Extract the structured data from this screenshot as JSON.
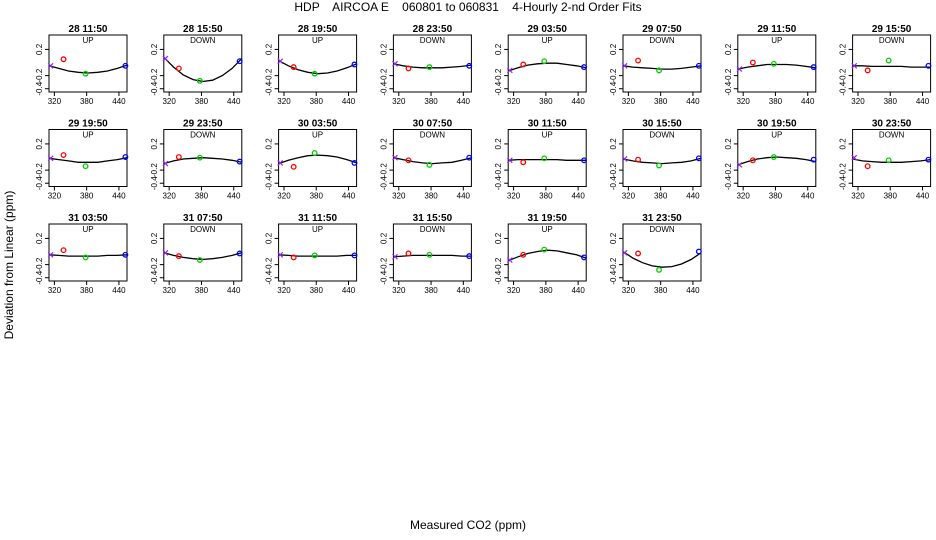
{
  "figure": {
    "title": "HDP    AIRCOA E    060801 to 060831    4-Hourly 2-nd Order Fits",
    "xlabel": "Measured CO2 (ppm)",
    "ylabel": "Deviation from Linear (ppm)"
  },
  "colors": {
    "curve": "#000000",
    "point_1": "#8a2be2",
    "point_2": "#ff0000",
    "point_3": "#00cc00",
    "point_4": "#0000ff",
    "axis": "#000000"
  },
  "chart_data": [
    {
      "type": "scatter",
      "title": "28 11:50",
      "subtitle": "UP",
      "x": [
        313,
        337,
        378,
        452
      ],
      "y": [
        -0.05,
        0.05,
        -0.17,
        -0.05
      ],
      "fit": [
        -0.05,
        -0.09,
        -0.13,
        -0.15,
        -0.16,
        -0.15,
        -0.13,
        -0.09,
        -0.04
      ],
      "xlim": [
        310,
        455
      ],
      "ylim": [
        -0.45,
        0.42
      ],
      "xticks": [
        320,
        380,
        440
      ],
      "yticks": [
        -0.4,
        -0.2,
        0.2
      ]
    },
    {
      "type": "scatter",
      "title": "28 15:50",
      "subtitle": "DOWN",
      "x": [
        313,
        338,
        377,
        451
      ],
      "y": [
        0.06,
        -0.09,
        -0.28,
        0.02
      ],
      "fit": [
        0.08,
        -0.07,
        -0.19,
        -0.26,
        -0.29,
        -0.27,
        -0.2,
        -0.09,
        0.06
      ],
      "xlim": [
        310,
        455
      ],
      "ylim": [
        -0.45,
        0.42
      ],
      "xticks": [
        320,
        380,
        440
      ],
      "yticks": [
        -0.4,
        -0.2,
        0.2
      ]
    },
    {
      "type": "scatter",
      "title": "28 19:50",
      "subtitle": "UP",
      "x": [
        313,
        338,
        377,
        451
      ],
      "y": [
        0.02,
        -0.07,
        -0.17,
        -0.03
      ],
      "fit": [
        0.03,
        -0.05,
        -0.11,
        -0.15,
        -0.17,
        -0.16,
        -0.13,
        -0.08,
        -0.02
      ],
      "xlim": [
        310,
        455
      ],
      "ylim": [
        -0.45,
        0.42
      ],
      "xticks": [
        320,
        380,
        440
      ],
      "yticks": [
        -0.4,
        -0.2,
        0.2
      ]
    },
    {
      "type": "scatter",
      "title": "28 23:50",
      "subtitle": "DOWN",
      "x": [
        313,
        338,
        377,
        451
      ],
      "y": [
        -0.02,
        -0.09,
        -0.07,
        -0.05
      ],
      "fit": [
        -0.02,
        -0.05,
        -0.07,
        -0.08,
        -0.08,
        -0.08,
        -0.07,
        -0.06,
        -0.04
      ],
      "xlim": [
        310,
        455
      ],
      "ylim": [
        -0.45,
        0.42
      ],
      "xticks": [
        320,
        380,
        440
      ],
      "yticks": [
        -0.4,
        -0.2,
        0.2
      ]
    },
    {
      "type": "scatter",
      "title": "29 03:50",
      "subtitle": "UP",
      "x": [
        313,
        338,
        377,
        451
      ],
      "y": [
        -0.12,
        -0.03,
        0.02,
        -0.07
      ],
      "fit": [
        -0.13,
        -0.08,
        -0.04,
        -0.02,
        -0.01,
        -0.01,
        -0.03,
        -0.05,
        -0.08
      ],
      "xlim": [
        310,
        455
      ],
      "ylim": [
        -0.45,
        0.42
      ],
      "xticks": [
        320,
        380,
        440
      ],
      "yticks": [
        -0.4,
        -0.2,
        0.2
      ]
    },
    {
      "type": "scatter",
      "title": "29 07:50",
      "subtitle": "DOWN",
      "x": [
        313,
        338,
        377,
        451
      ],
      "y": [
        -0.05,
        0.03,
        -0.12,
        -0.05
      ],
      "fit": [
        -0.05,
        -0.07,
        -0.08,
        -0.09,
        -0.1,
        -0.1,
        -0.09,
        -0.07,
        -0.05
      ],
      "xlim": [
        310,
        455
      ],
      "ylim": [
        -0.45,
        0.42
      ],
      "xticks": [
        320,
        380,
        440
      ],
      "yticks": [
        -0.4,
        -0.2,
        0.2
      ]
    },
    {
      "type": "scatter",
      "title": "29 11:50",
      "subtitle": "UP",
      "x": [
        313,
        338,
        377,
        451
      ],
      "y": [
        -0.1,
        0.0,
        -0.02,
        -0.07
      ],
      "fit": [
        -0.1,
        -0.07,
        -0.05,
        -0.03,
        -0.03,
        -0.03,
        -0.04,
        -0.06,
        -0.08
      ],
      "xlim": [
        310,
        455
      ],
      "ylim": [
        -0.45,
        0.42
      ],
      "xticks": [
        320,
        380,
        440
      ],
      "yticks": [
        -0.4,
        -0.2,
        0.2
      ]
    },
    {
      "type": "scatter",
      "title": "29 15:50",
      "subtitle": "DOWN",
      "x": [
        313,
        338,
        377,
        451
      ],
      "y": [
        -0.05,
        -0.12,
        0.03,
        -0.05
      ],
      "fit": [
        -0.05,
        -0.05,
        -0.06,
        -0.06,
        -0.06,
        -0.06,
        -0.07,
        -0.07,
        -0.07
      ],
      "xlim": [
        310,
        455
      ],
      "ylim": [
        -0.45,
        0.42
      ],
      "xticks": [
        320,
        380,
        440
      ],
      "yticks": [
        -0.4,
        -0.2,
        0.2
      ]
    },
    {
      "type": "scatter",
      "title": "29 19:50",
      "subtitle": "UP",
      "x": [
        313,
        337,
        378,
        452
      ],
      "y": [
        -0.02,
        0.03,
        -0.14,
        0.0
      ],
      "fit": [
        -0.02,
        -0.04,
        -0.06,
        -0.08,
        -0.08,
        -0.08,
        -0.06,
        -0.04,
        -0.01
      ],
      "xlim": [
        310,
        455
      ],
      "ylim": [
        -0.45,
        0.42
      ],
      "xticks": [
        320,
        380,
        440
      ],
      "yticks": [
        -0.4,
        -0.2,
        0.2
      ]
    },
    {
      "type": "scatter",
      "title": "29 23:50",
      "subtitle": "DOWN",
      "x": [
        313,
        338,
        377,
        451
      ],
      "y": [
        -0.1,
        0.0,
        -0.01,
        -0.07
      ],
      "fit": [
        -0.1,
        -0.06,
        -0.03,
        -0.02,
        -0.01,
        -0.02,
        -0.03,
        -0.05,
        -0.08
      ],
      "xlim": [
        310,
        455
      ],
      "ylim": [
        -0.45,
        0.42
      ],
      "xticks": [
        320,
        380,
        440
      ],
      "yticks": [
        -0.4,
        -0.2,
        0.2
      ]
    },
    {
      "type": "scatter",
      "title": "30 03:50",
      "subtitle": "UP",
      "x": [
        313,
        338,
        377,
        451
      ],
      "y": [
        -0.09,
        -0.15,
        0.06,
        -0.09
      ],
      "fit": [
        -0.1,
        -0.05,
        -0.01,
        0.02,
        0.03,
        0.02,
        0.0,
        -0.04,
        -0.09
      ],
      "xlim": [
        310,
        455
      ],
      "ylim": [
        -0.45,
        0.42
      ],
      "xticks": [
        320,
        380,
        440
      ],
      "yticks": [
        -0.4,
        -0.2,
        0.2
      ]
    },
    {
      "type": "scatter",
      "title": "30 07:50",
      "subtitle": "DOWN",
      "x": [
        313,
        338,
        377,
        451
      ],
      "y": [
        -0.01,
        -0.05,
        -0.12,
        -0.01
      ],
      "fit": [
        -0.01,
        -0.04,
        -0.07,
        -0.09,
        -0.1,
        -0.09,
        -0.08,
        -0.05,
        -0.01
      ],
      "xlim": [
        310,
        455
      ],
      "ylim": [
        -0.45,
        0.42
      ],
      "xticks": [
        320,
        380,
        440
      ],
      "yticks": [
        -0.4,
        -0.2,
        0.2
      ]
    },
    {
      "type": "scatter",
      "title": "30 11:50",
      "subtitle": "UP",
      "x": [
        313,
        338,
        377,
        451
      ],
      "y": [
        -0.05,
        -0.08,
        -0.02,
        -0.05
      ],
      "fit": [
        -0.05,
        -0.04,
        -0.04,
        -0.04,
        -0.04,
        -0.04,
        -0.05,
        -0.05,
        -0.05
      ],
      "xlim": [
        310,
        455
      ],
      "ylim": [
        -0.45,
        0.42
      ],
      "xticks": [
        320,
        380,
        440
      ],
      "yticks": [
        -0.4,
        -0.2,
        0.2
      ]
    },
    {
      "type": "scatter",
      "title": "30 15:50",
      "subtitle": "DOWN",
      "x": [
        313,
        338,
        377,
        451
      ],
      "y": [
        -0.03,
        -0.04,
        -0.13,
        -0.02
      ],
      "fit": [
        -0.03,
        -0.06,
        -0.08,
        -0.09,
        -0.1,
        -0.09,
        -0.08,
        -0.06,
        -0.02
      ],
      "xlim": [
        310,
        455
      ],
      "ylim": [
        -0.45,
        0.42
      ],
      "xticks": [
        320,
        380,
        440
      ],
      "yticks": [
        -0.4,
        -0.2,
        0.2
      ]
    },
    {
      "type": "scatter",
      "title": "30 19:50",
      "subtitle": "UP",
      "x": [
        313,
        338,
        377,
        451
      ],
      "y": [
        -0.12,
        -0.05,
        0.0,
        -0.04
      ],
      "fit": [
        -0.12,
        -0.07,
        -0.03,
        -0.01,
        0.0,
        -0.01,
        -0.02,
        -0.04,
        -0.07
      ],
      "xlim": [
        310,
        455
      ],
      "ylim": [
        -0.45,
        0.42
      ],
      "xticks": [
        320,
        380,
        440
      ],
      "yticks": [
        -0.4,
        -0.2,
        0.2
      ]
    },
    {
      "type": "scatter",
      "title": "30 23:50",
      "subtitle": "DOWN",
      "x": [
        313,
        338,
        377,
        451
      ],
      "y": [
        -0.01,
        -0.14,
        -0.05,
        -0.04
      ],
      "fit": [
        -0.03,
        -0.06,
        -0.07,
        -0.08,
        -0.08,
        -0.08,
        -0.07,
        -0.06,
        -0.04
      ],
      "xlim": [
        310,
        455
      ],
      "ylim": [
        -0.45,
        0.42
      ],
      "xticks": [
        320,
        380,
        440
      ],
      "yticks": [
        -0.4,
        -0.2,
        0.2
      ]
    },
    {
      "type": "scatter",
      "title": "31 03:50",
      "subtitle": "UP",
      "x": [
        313,
        337,
        378,
        452
      ],
      "y": [
        -0.05,
        0.02,
        -0.09,
        -0.05
      ],
      "fit": [
        -0.05,
        -0.06,
        -0.07,
        -0.07,
        -0.07,
        -0.07,
        -0.06,
        -0.06,
        -0.05
      ],
      "xlim": [
        310,
        455
      ],
      "ylim": [
        -0.45,
        0.42
      ],
      "xticks": [
        320,
        380,
        440
      ],
      "yticks": [
        -0.4,
        -0.2,
        0.2
      ]
    },
    {
      "type": "scatter",
      "title": "31 07:50",
      "subtitle": "DOWN",
      "x": [
        313,
        338,
        377,
        451
      ],
      "y": [
        -0.02,
        -0.07,
        -0.13,
        -0.03
      ],
      "fit": [
        -0.02,
        -0.06,
        -0.09,
        -0.11,
        -0.12,
        -0.11,
        -0.09,
        -0.06,
        -0.02
      ],
      "xlim": [
        310,
        455
      ],
      "ylim": [
        -0.45,
        0.42
      ],
      "xticks": [
        320,
        380,
        440
      ],
      "yticks": [
        -0.4,
        -0.2,
        0.2
      ]
    },
    {
      "type": "scatter",
      "title": "31 11:50",
      "subtitle": "UP",
      "x": [
        313,
        338,
        377,
        451
      ],
      "y": [
        -0.05,
        -0.09,
        -0.06,
        -0.06
      ],
      "fit": [
        -0.05,
        -0.06,
        -0.07,
        -0.07,
        -0.07,
        -0.07,
        -0.07,
        -0.06,
        -0.06
      ],
      "xlim": [
        310,
        455
      ],
      "ylim": [
        -0.45,
        0.42
      ],
      "xticks": [
        320,
        380,
        440
      ],
      "yticks": [
        -0.4,
        -0.2,
        0.2
      ]
    },
    {
      "type": "scatter",
      "title": "31 15:50",
      "subtitle": "DOWN",
      "x": [
        313,
        338,
        377,
        451
      ],
      "y": [
        -0.08,
        -0.03,
        -0.05,
        -0.07
      ],
      "fit": [
        -0.08,
        -0.07,
        -0.06,
        -0.06,
        -0.06,
        -0.06,
        -0.06,
        -0.07,
        -0.07
      ],
      "xlim": [
        310,
        455
      ],
      "ylim": [
        -0.45,
        0.42
      ],
      "xticks": [
        320,
        380,
        440
      ],
      "yticks": [
        -0.4,
        -0.2,
        0.2
      ]
    },
    {
      "type": "scatter",
      "title": "31 19:50",
      "subtitle": "UP",
      "x": [
        313,
        338,
        377,
        451
      ],
      "y": [
        -0.13,
        -0.05,
        0.03,
        -0.09
      ],
      "fit": [
        -0.14,
        -0.08,
        -0.03,
        0.0,
        0.02,
        0.01,
        -0.02,
        -0.05,
        -0.1
      ],
      "xlim": [
        310,
        455
      ],
      "ylim": [
        -0.45,
        0.42
      ],
      "xticks": [
        320,
        380,
        440
      ],
      "yticks": [
        -0.4,
        -0.2,
        0.2
      ]
    },
    {
      "type": "scatter",
      "title": "31 23:50",
      "subtitle": "DOWN",
      "x": [
        313,
        338,
        377,
        451
      ],
      "y": [
        -0.02,
        -0.03,
        -0.28,
        0.0
      ],
      "fit": [
        0.0,
        -0.1,
        -0.17,
        -0.22,
        -0.24,
        -0.23,
        -0.19,
        -0.12,
        -0.02
      ],
      "xlim": [
        310,
        455
      ],
      "ylim": [
        -0.45,
        0.42
      ],
      "xticks": [
        320,
        380,
        440
      ],
      "yticks": [
        -0.4,
        -0.2,
        0.2
      ]
    }
  ]
}
